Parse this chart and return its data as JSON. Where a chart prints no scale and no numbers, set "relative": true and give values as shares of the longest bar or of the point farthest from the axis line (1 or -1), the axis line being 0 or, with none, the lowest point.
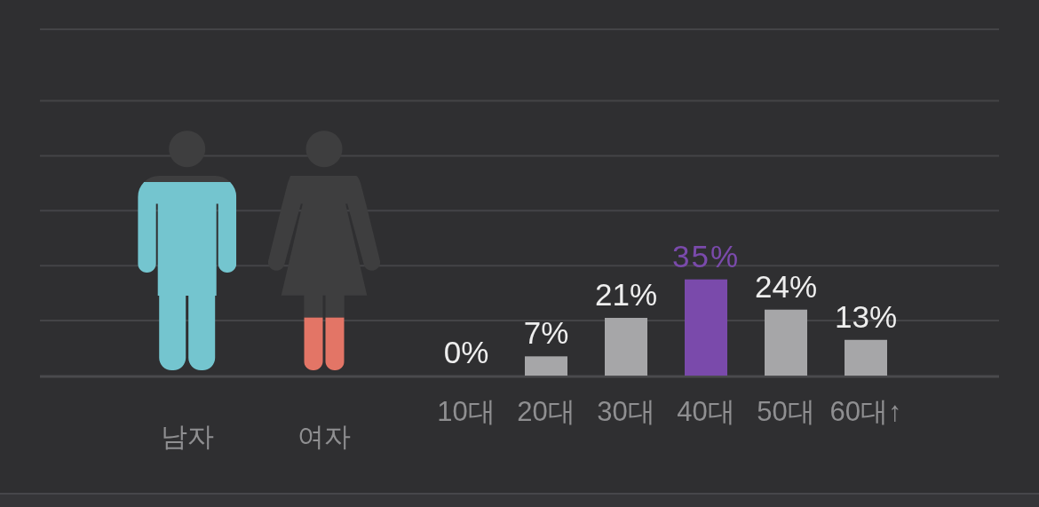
{
  "chart_data": [
    {
      "type": "bar",
      "categories": [
        "남자",
        "여자"
      ],
      "values": [
        1,
        0.28
      ],
      "colors": [
        "#74c5cf",
        "#e37566"
      ],
      "relative": true,
      "grid": true
    },
    {
      "type": "bar",
      "categories": [
        "10대",
        "20대",
        "30대",
        "40대",
        "50대",
        "60대↑"
      ],
      "values": [
        0,
        7,
        21,
        35,
        24,
        13
      ],
      "colors": [
        "#a6a6a8",
        "#a6a6a8",
        "#a6a6a8",
        "#7a4aab",
        "#a6a6a8",
        "#a6a6a8"
      ],
      "value_labels": [
        "0%",
        "7%",
        "21%",
        "35%",
        "24%",
        "13%"
      ],
      "ylim": [
        0,
        126
      ],
      "yticks": [
        {
          "value": 0,
          "label": null
        },
        {
          "value": 20,
          "label": null
        },
        {
          "value": 40,
          "label": null
        },
        {
          "value": 60,
          "label": null
        },
        {
          "value": 80,
          "label": null
        },
        {
          "value": 100,
          "label": null
        }
      ],
      "grid": true
    }
  ]
}
